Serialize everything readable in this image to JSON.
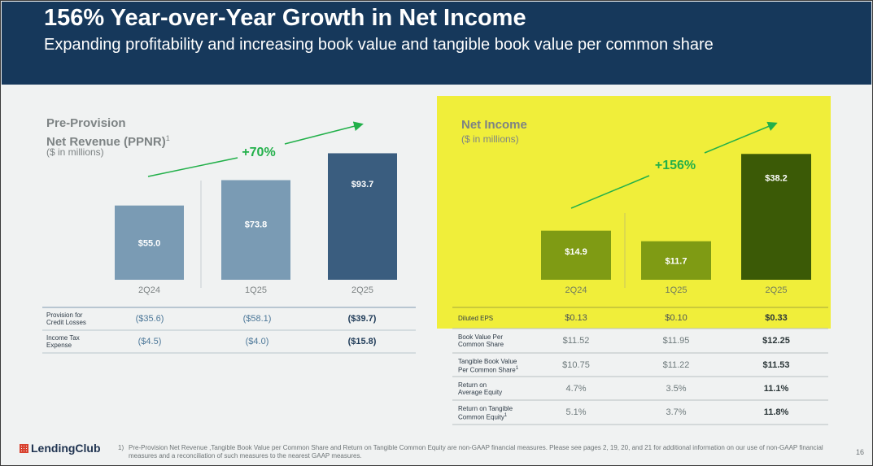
{
  "header": {
    "title": "156% Year-over-Year Growth in Net Income",
    "subtitle": "Expanding profitability and increasing book value and tangible book value per common share"
  },
  "colors": {
    "header_bg": "#16385b",
    "left_bar": "#7a9bb4",
    "left_bar_last": "#3a5d7f",
    "right_bar": "#7f9b14",
    "right_bar_last": "#3b5a06",
    "highlight": "#f0ee3a",
    "growth": "#22b04a"
  },
  "chart_data": [
    {
      "type": "bar",
      "title": "Pre-Provision Net Revenue (PPNR)",
      "title_line1": "Pre-Provision",
      "title_line2": "Net Revenue (PPNR)",
      "title_sup": "1",
      "unit": "($ in millions)",
      "categories": [
        "2Q24",
        "1Q25",
        "2Q25"
      ],
      "values": [
        55.0,
        73.8,
        93.7
      ],
      "labels": [
        "$55.0",
        "$73.8",
        "$93.7"
      ],
      "growth": "+70%",
      "ylim": [
        0,
        100
      ]
    },
    {
      "type": "bar",
      "title": "Net Income",
      "unit": "($ in millions)",
      "categories": [
        "2Q24",
        "1Q25",
        "2Q25"
      ],
      "values": [
        14.9,
        11.7,
        38.2
      ],
      "labels": [
        "$14.9",
        "$11.7",
        "$38.2"
      ],
      "growth": "+156%",
      "ylim": [
        0,
        40
      ]
    }
  ],
  "left_table": [
    {
      "label1": "Provision for",
      "label2": "Credit Losses",
      "values": [
        "($35.6)",
        "($58.1)",
        "($39.7)"
      ]
    },
    {
      "label1": "Income Tax",
      "label2": "Expense",
      "values": [
        "($4.5)",
        "($4.0)",
        "($15.8)"
      ]
    }
  ],
  "right_table": [
    {
      "label1": "Diluted EPS",
      "label2": "",
      "values": [
        "$0.13",
        "$0.10",
        "$0.33"
      ]
    },
    {
      "label1": "Book Value Per",
      "label2": "Common Share",
      "values": [
        "$11.52",
        "$11.95",
        "$12.25"
      ]
    },
    {
      "label1": "Tangible Book Value",
      "label2": "Per Common Share",
      "sup": "1",
      "values": [
        "$10.75",
        "$11.22",
        "$11.53"
      ]
    },
    {
      "label1": "Return on",
      "label2": "Average Equity",
      "values": [
        "4.7%",
        "3.5%",
        "11.1%"
      ]
    },
    {
      "label1": "Return on Tangible",
      "label2": "Common Equity",
      "sup": "1",
      "values": [
        "5.1%",
        "3.7%",
        "11.8%"
      ]
    }
  ],
  "footer": {
    "logo": "LendingClub",
    "footnote_number": "1)",
    "footnote": "Pre-Provision Net Revenue ,Tangible Book Value per Common Share and Return on Tangible Common Equity are non-GAAP financial measures. Please see pages 2, 19, 20, and 21 for additional information on our use of non-GAAP financial measures and a reconciliation of such measures to the nearest GAAP measures.",
    "page_number": "16"
  }
}
